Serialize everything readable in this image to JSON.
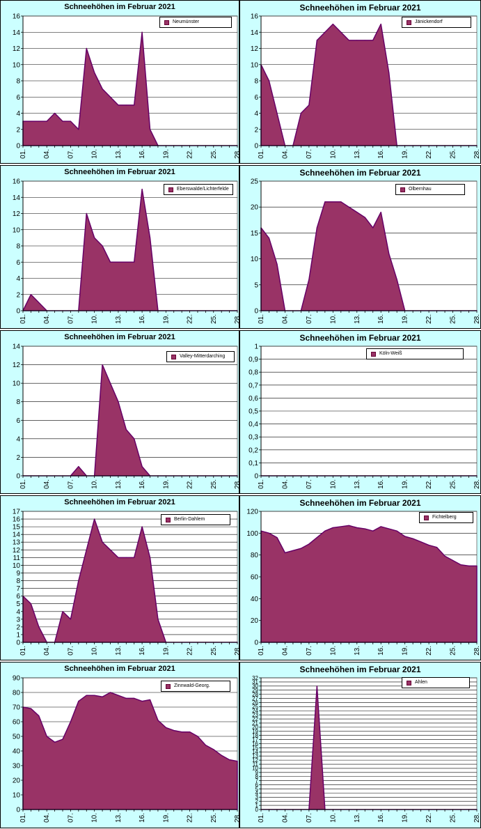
{
  "chart_data": [
    {
      "type": "area",
      "title": "Schneehöhen im Februar 2021",
      "station": "Neumünster",
      "xlabel": "",
      "ylabel": "",
      "x_ticks": [
        "01.",
        "04.",
        "07.",
        "10.",
        "13.",
        "16.",
        "19.",
        "22.",
        "25.",
        "28."
      ],
      "y_ticks": [
        "0",
        "2",
        "4",
        "6",
        "8",
        "10",
        "12",
        "14",
        "16"
      ],
      "ylim": [
        0,
        16
      ],
      "days": [
        1,
        2,
        3,
        4,
        5,
        6,
        7,
        8,
        9,
        10,
        11,
        12,
        13,
        14,
        15,
        16,
        17,
        18,
        19,
        20,
        21,
        22,
        23,
        24,
        25,
        26,
        27,
        28
      ],
      "values": [
        3,
        3,
        3,
        3,
        4,
        3,
        3,
        2,
        12,
        9,
        7,
        6,
        5,
        5,
        5,
        14,
        2,
        0,
        0,
        0,
        0,
        0,
        0,
        0,
        0,
        0,
        0,
        0
      ],
      "legend": "top-right"
    },
    {
      "type": "area",
      "title": "Schneehöhen im Februar 2021",
      "station": "Jänickendorf",
      "xlabel": "",
      "ylabel": "",
      "x_ticks": [
        "01.",
        "04.",
        "07.",
        "10.",
        "13.",
        "16.",
        "19.",
        "22.",
        "25.",
        "28."
      ],
      "y_ticks": [
        "0",
        "2",
        "4",
        "6",
        "8",
        "10",
        "12",
        "14",
        "16"
      ],
      "ylim": [
        0,
        16
      ],
      "days": [
        1,
        2,
        3,
        4,
        5,
        6,
        7,
        8,
        9,
        10,
        11,
        12,
        13,
        14,
        15,
        16,
        17,
        18,
        19,
        20,
        21,
        22,
        23,
        24,
        25,
        26,
        27,
        28
      ],
      "values": [
        10,
        8,
        4,
        0,
        0,
        4,
        5,
        13,
        14,
        15,
        14,
        13,
        13,
        13,
        13,
        15,
        9,
        0,
        0,
        0,
        0,
        0,
        0,
        0,
        0,
        0,
        0,
        0
      ],
      "legend": "top-right"
    },
    {
      "type": "area",
      "title": "Schneehöhen im Februar 2021",
      "station": "Eberswalde/Lichterfelde",
      "xlabel": "",
      "ylabel": "",
      "x_ticks": [
        "01.",
        "04.",
        "07.",
        "10.",
        "13.",
        "16.",
        "19.",
        "22.",
        "25.",
        "28."
      ],
      "y_ticks": [
        "0",
        "2",
        "4",
        "6",
        "8",
        "10",
        "12",
        "14",
        "16"
      ],
      "ylim": [
        0,
        16
      ],
      "days": [
        1,
        2,
        3,
        4,
        5,
        6,
        7,
        8,
        9,
        10,
        11,
        12,
        13,
        14,
        15,
        16,
        17,
        18,
        19,
        20,
        21,
        22,
        23,
        24,
        25,
        26,
        27,
        28
      ],
      "values": [
        0,
        2,
        1,
        0,
        0,
        0,
        0,
        0,
        12,
        9,
        8,
        6,
        6,
        6,
        6,
        15,
        9,
        0,
        0,
        0,
        0,
        0,
        0,
        0,
        0,
        0,
        0,
        0
      ],
      "legend": "top-right"
    },
    {
      "type": "area",
      "title": "Schneehöhen im Februar 2021",
      "station": "Olbernhau",
      "xlabel": "",
      "ylabel": "",
      "x_ticks": [
        "01.",
        "04.",
        "07.",
        "10.",
        "13.",
        "16.",
        "19.",
        "22.",
        "25.",
        "28."
      ],
      "y_ticks": [
        "0",
        "5",
        "10",
        "15",
        "20",
        "25"
      ],
      "ylim": [
        0,
        25
      ],
      "days": [
        1,
        2,
        3,
        4,
        5,
        6,
        7,
        8,
        9,
        10,
        11,
        12,
        13,
        14,
        15,
        16,
        17,
        18,
        19,
        20,
        21,
        22,
        23,
        24,
        25,
        26,
        27,
        28
      ],
      "values": [
        16,
        14,
        9,
        0,
        0,
        0,
        6,
        16,
        21,
        21,
        21,
        20,
        19,
        18,
        16,
        19,
        11,
        6,
        0,
        0,
        0,
        0,
        0,
        0,
        0,
        0,
        0,
        0
      ],
      "legend": "top-right"
    },
    {
      "type": "area",
      "title": "Schneehöhen im Februar 2021",
      "station": "Valley-Mitterdarching",
      "xlabel": "",
      "ylabel": "",
      "x_ticks": [
        "01.",
        "04.",
        "07.",
        "10.",
        "13.",
        "16.",
        "19.",
        "22.",
        "25.",
        "28."
      ],
      "y_ticks": [
        "0",
        "2",
        "4",
        "6",
        "8",
        "10",
        "12",
        "14"
      ],
      "ylim": [
        0,
        14
      ],
      "days": [
        1,
        2,
        3,
        4,
        5,
        6,
        7,
        8,
        9,
        10,
        11,
        12,
        13,
        14,
        15,
        16,
        17,
        18,
        19,
        20,
        21,
        22,
        23,
        24,
        25,
        26,
        27,
        28
      ],
      "values": [
        0,
        0,
        0,
        0,
        0,
        0,
        0,
        1,
        0,
        0,
        12,
        10,
        8,
        5,
        4,
        1,
        0,
        0,
        0,
        0,
        0,
        0,
        0,
        0,
        0,
        0,
        0,
        0
      ],
      "legend": "top-right"
    },
    {
      "type": "area",
      "title": "Schneehöhen im Februar 2021",
      "station": "Köln-Weiß",
      "xlabel": "",
      "ylabel": "",
      "x_ticks": [
        "01.",
        "04.",
        "07.",
        "10.",
        "13.",
        "16.",
        "19.",
        "22.",
        "25.",
        "28."
      ],
      "y_ticks": [
        "0",
        "0,1",
        "0,2",
        "0,3",
        "0,4",
        "0,5",
        "0,6",
        "0,7",
        "0,8",
        "0,9",
        "1"
      ],
      "ylim": [
        0,
        1
      ],
      "days": [
        1,
        2,
        3,
        4,
        5,
        6,
        7,
        8,
        9,
        10,
        11,
        12,
        13,
        14,
        15,
        16,
        17,
        18,
        19,
        20,
        21,
        22,
        23,
        24,
        25,
        26,
        27,
        28
      ],
      "values": [
        0,
        0,
        0,
        0,
        0,
        0,
        0,
        0,
        0,
        0,
        0,
        0,
        0,
        0,
        0,
        0,
        0,
        0,
        0,
        0,
        0,
        0,
        0,
        0,
        0,
        0,
        0,
        0
      ],
      "legend": "top-right"
    },
    {
      "type": "area",
      "title": "Schneehöhen im Februar 2021",
      "station": "Berlin-Dahlem",
      "xlabel": "",
      "ylabel": "",
      "x_ticks": [
        "01.",
        "04.",
        "07.",
        "10.",
        "13.",
        "16.",
        "19.",
        "22.",
        "25.",
        "28."
      ],
      "y_ticks": [
        "0",
        "1",
        "2",
        "3",
        "4",
        "5",
        "6",
        "7",
        "8",
        "9",
        "10",
        "11",
        "12",
        "13",
        "14",
        "15",
        "16",
        "17"
      ],
      "ylim": [
        0,
        17
      ],
      "days": [
        1,
        2,
        3,
        4,
        5,
        6,
        7,
        8,
        9,
        10,
        11,
        12,
        13,
        14,
        15,
        16,
        17,
        18,
        19,
        20,
        21,
        22,
        23,
        24,
        25,
        26,
        27,
        28
      ],
      "values": [
        6,
        5,
        2,
        0,
        0,
        4,
        3,
        8,
        12,
        16,
        13,
        12,
        11,
        11,
        11,
        15,
        11,
        3,
        0,
        0,
        0,
        0,
        0,
        0,
        0,
        0,
        0,
        0
      ],
      "legend": "top-right"
    },
    {
      "type": "area",
      "title": "Schneehöhen im Februar 2021",
      "station": "Fichtelberg",
      "xlabel": "",
      "ylabel": "",
      "x_ticks": [
        "01.",
        "04.",
        "07.",
        "10.",
        "13.",
        "16.",
        "19.",
        "22.",
        "25.",
        "28."
      ],
      "y_ticks": [
        "0",
        "20",
        "40",
        "60",
        "80",
        "100",
        "120"
      ],
      "ylim": [
        0,
        120
      ],
      "days": [
        1,
        2,
        3,
        4,
        5,
        6,
        7,
        8,
        9,
        10,
        11,
        12,
        13,
        14,
        15,
        16,
        17,
        18,
        19,
        20,
        21,
        22,
        23,
        24,
        25,
        26,
        27,
        28
      ],
      "values": [
        102,
        100,
        96,
        82,
        84,
        86,
        90,
        96,
        102,
        105,
        106,
        107,
        105,
        104,
        102,
        106,
        104,
        102,
        97,
        95,
        92,
        89,
        87,
        79,
        75,
        71,
        70,
        70
      ],
      "legend": "top-right"
    },
    {
      "type": "area",
      "title": "Schneehöhen im Februar 2021",
      "station": "Zinnwald-Georg.",
      "xlabel": "",
      "ylabel": "",
      "x_ticks": [
        "01.",
        "04.",
        "07.",
        "10.",
        "13.",
        "16.",
        "19.",
        "22.",
        "25.",
        "28."
      ],
      "y_ticks": [
        "0",
        "10",
        "20",
        "30",
        "40",
        "50",
        "60",
        "70",
        "80",
        "90"
      ],
      "ylim": [
        0,
        90
      ],
      "days": [
        1,
        2,
        3,
        4,
        5,
        6,
        7,
        8,
        9,
        10,
        11,
        12,
        13,
        14,
        15,
        16,
        17,
        18,
        19,
        20,
        21,
        22,
        23,
        24,
        25,
        26,
        27,
        28
      ],
      "values": [
        70,
        69,
        64,
        50,
        46,
        48,
        60,
        74,
        78,
        78,
        77,
        80,
        78,
        76,
        76,
        74,
        75,
        61,
        56,
        54,
        53,
        53,
        50,
        44,
        41,
        37,
        34,
        33
      ],
      "legend": "top-right"
    },
    {
      "type": "area",
      "title": "Schneehöhen im Februar 2021",
      "station": "Ahlen",
      "xlabel": "",
      "ylabel": "",
      "x_ticks": [
        "01.",
        "04.",
        "07.",
        "10.",
        "13.",
        "16.",
        "19.",
        "22.",
        "25.",
        "28."
      ],
      "y_ticks": [
        "0",
        "1",
        "2",
        "3",
        "4",
        "5",
        "6",
        "7",
        "8",
        "9",
        "10",
        "11",
        "12",
        "13",
        "14",
        "15",
        "16",
        "17",
        "18",
        "19",
        "20",
        "21",
        "22",
        "23",
        "24",
        "25",
        "26",
        "27",
        "28",
        "29",
        "30",
        "31",
        "32"
      ],
      "ylim": [
        0,
        32
      ],
      "days": [
        1,
        2,
        3,
        4,
        5,
        6,
        7,
        8,
        9,
        10,
        11,
        12,
        13,
        14,
        15,
        16,
        17,
        18,
        19,
        20,
        21,
        22,
        23,
        24,
        25,
        26,
        27,
        28
      ],
      "values": [
        0,
        0,
        0,
        0,
        0,
        0,
        0,
        30,
        0,
        0,
        0,
        0,
        0,
        0,
        0,
        0,
        0,
        0,
        0,
        0,
        0,
        0,
        0,
        0,
        0,
        0,
        0,
        0
      ],
      "legend": "top-right"
    }
  ],
  "colors": {
    "panel_background": "#ccffff",
    "area_fill": "#993366",
    "area_line": "#660066",
    "legend_background": "#ffffff"
  }
}
